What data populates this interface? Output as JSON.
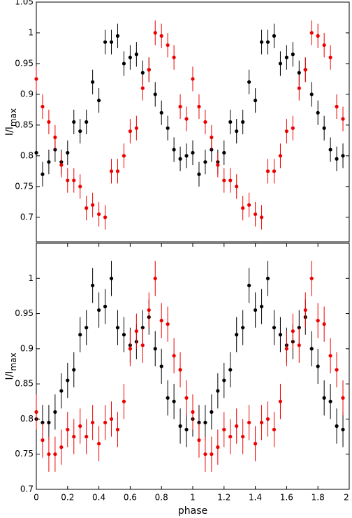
{
  "chart_data": [
    {
      "type": "scatter",
      "ylabel": "I/I",
      "ylabel_sub": "max",
      "xlim": [
        0,
        2
      ],
      "ylim": [
        0.66,
        1.05
      ],
      "yticks": [
        0.7,
        0.75,
        0.8,
        0.85,
        0.9,
        0.95,
        1,
        1.05
      ],
      "x": [
        0,
        0.04,
        0.08,
        0.12,
        0.16,
        0.2,
        0.24,
        0.28,
        0.32,
        0.36,
        0.4,
        0.44,
        0.48,
        0.52,
        0.56,
        0.6,
        0.64,
        0.68,
        0.72,
        0.76,
        0.8,
        0.84,
        0.88,
        0.92,
        0.96,
        1,
        1.04,
        1.08,
        1.12,
        1.16,
        1.2,
        1.24,
        1.28,
        1.32,
        1.36,
        1.4,
        1.44,
        1.48,
        1.52,
        1.56,
        1.6,
        1.64,
        1.68,
        1.72,
        1.76,
        1.8,
        1.84,
        1.88,
        1.92,
        1.96
      ],
      "series": [
        {
          "color": "#000000",
          "error": 0.02,
          "values": [
            0.805,
            0.77,
            0.79,
            0.81,
            0.79,
            0.805,
            0.855,
            0.84,
            0.855,
            0.92,
            0.89,
            0.985,
            0.985,
            0.995,
            0.95,
            0.96,
            0.965,
            0.935,
            0.94,
            0.9,
            0.87,
            0.845,
            0.81,
            0.795,
            0.8,
            0.805,
            0.77,
            0.79,
            0.81,
            0.79,
            0.805,
            0.855,
            0.84,
            0.855,
            0.92,
            0.89,
            0.985,
            0.985,
            0.995,
            0.95,
            0.96,
            0.965,
            0.935,
            0.94,
            0.9,
            0.87,
            0.845,
            0.81,
            0.795,
            0.8
          ]
        },
        {
          "color": "#ee0000",
          "error": 0.02,
          "values": [
            0.925,
            0.88,
            0.855,
            0.83,
            0.785,
            0.76,
            0.76,
            0.75,
            0.715,
            0.72,
            0.705,
            0.7,
            0.775,
            0.775,
            0.8,
            0.84,
            0.845,
            0.91,
            0.94,
            1.0,
            0.995,
            0.98,
            0.96,
            0.88,
            0.86,
            0.925,
            0.88,
            0.855,
            0.83,
            0.785,
            0.76,
            0.76,
            0.75,
            0.715,
            0.72,
            0.705,
            0.7,
            0.775,
            0.775,
            0.8,
            0.84,
            0.845,
            0.91,
            0.94,
            1.0,
            0.995,
            0.98,
            0.96,
            0.88,
            0.86
          ]
        }
      ]
    },
    {
      "type": "scatter",
      "ylabel": "I/I",
      "ylabel_sub": "max",
      "xlabel": "phase",
      "xlim": [
        0,
        2
      ],
      "ylim": [
        0.7,
        1.05
      ],
      "xticks": [
        0,
        0.2,
        0.4,
        0.6,
        0.8,
        1,
        1.2,
        1.4,
        1.6,
        1.8,
        2
      ],
      "yticks": [
        0.7,
        0.75,
        0.8,
        0.85,
        0.9,
        0.95,
        1
      ],
      "x": [
        0,
        0.04,
        0.08,
        0.12,
        0.16,
        0.2,
        0.24,
        0.28,
        0.32,
        0.36,
        0.4,
        0.44,
        0.48,
        0.52,
        0.56,
        0.6,
        0.64,
        0.68,
        0.72,
        0.76,
        0.8,
        0.84,
        0.88,
        0.92,
        0.96,
        1,
        1.04,
        1.08,
        1.12,
        1.16,
        1.2,
        1.24,
        1.28,
        1.32,
        1.36,
        1.4,
        1.44,
        1.48,
        1.52,
        1.56,
        1.6,
        1.64,
        1.68,
        1.72,
        1.76,
        1.8,
        1.84,
        1.88,
        1.92,
        1.96
      ],
      "series": [
        {
          "color": "#000000",
          "error": 0.025,
          "values": [
            0.8,
            0.795,
            0.795,
            0.81,
            0.84,
            0.855,
            0.87,
            0.92,
            0.93,
            0.99,
            0.955,
            0.96,
            1.0,
            0.93,
            0.92,
            0.905,
            0.91,
            0.93,
            0.945,
            0.9,
            0.875,
            0.83,
            0.825,
            0.79,
            0.785,
            0.8,
            0.795,
            0.795,
            0.81,
            0.84,
            0.855,
            0.87,
            0.92,
            0.93,
            0.99,
            0.955,
            0.96,
            1.0,
            0.93,
            0.92,
            0.905,
            0.91,
            0.93,
            0.945,
            0.9,
            0.875,
            0.83,
            0.825,
            0.79,
            0.785
          ]
        },
        {
          "color": "#ee0000",
          "error": 0.025,
          "values": [
            0.81,
            0.77,
            0.75,
            0.75,
            0.76,
            0.785,
            0.775,
            0.79,
            0.775,
            0.795,
            0.765,
            0.795,
            0.8,
            0.785,
            0.825,
            0.9,
            0.925,
            0.905,
            0.955,
            1.0,
            0.94,
            0.935,
            0.89,
            0.87,
            0.83,
            0.81,
            0.77,
            0.75,
            0.75,
            0.76,
            0.785,
            0.775,
            0.79,
            0.775,
            0.795,
            0.765,
            0.795,
            0.8,
            0.785,
            0.825,
            0.9,
            0.925,
            0.905,
            0.955,
            1.0,
            0.94,
            0.935,
            0.89,
            0.87,
            0.83
          ]
        }
      ]
    }
  ]
}
